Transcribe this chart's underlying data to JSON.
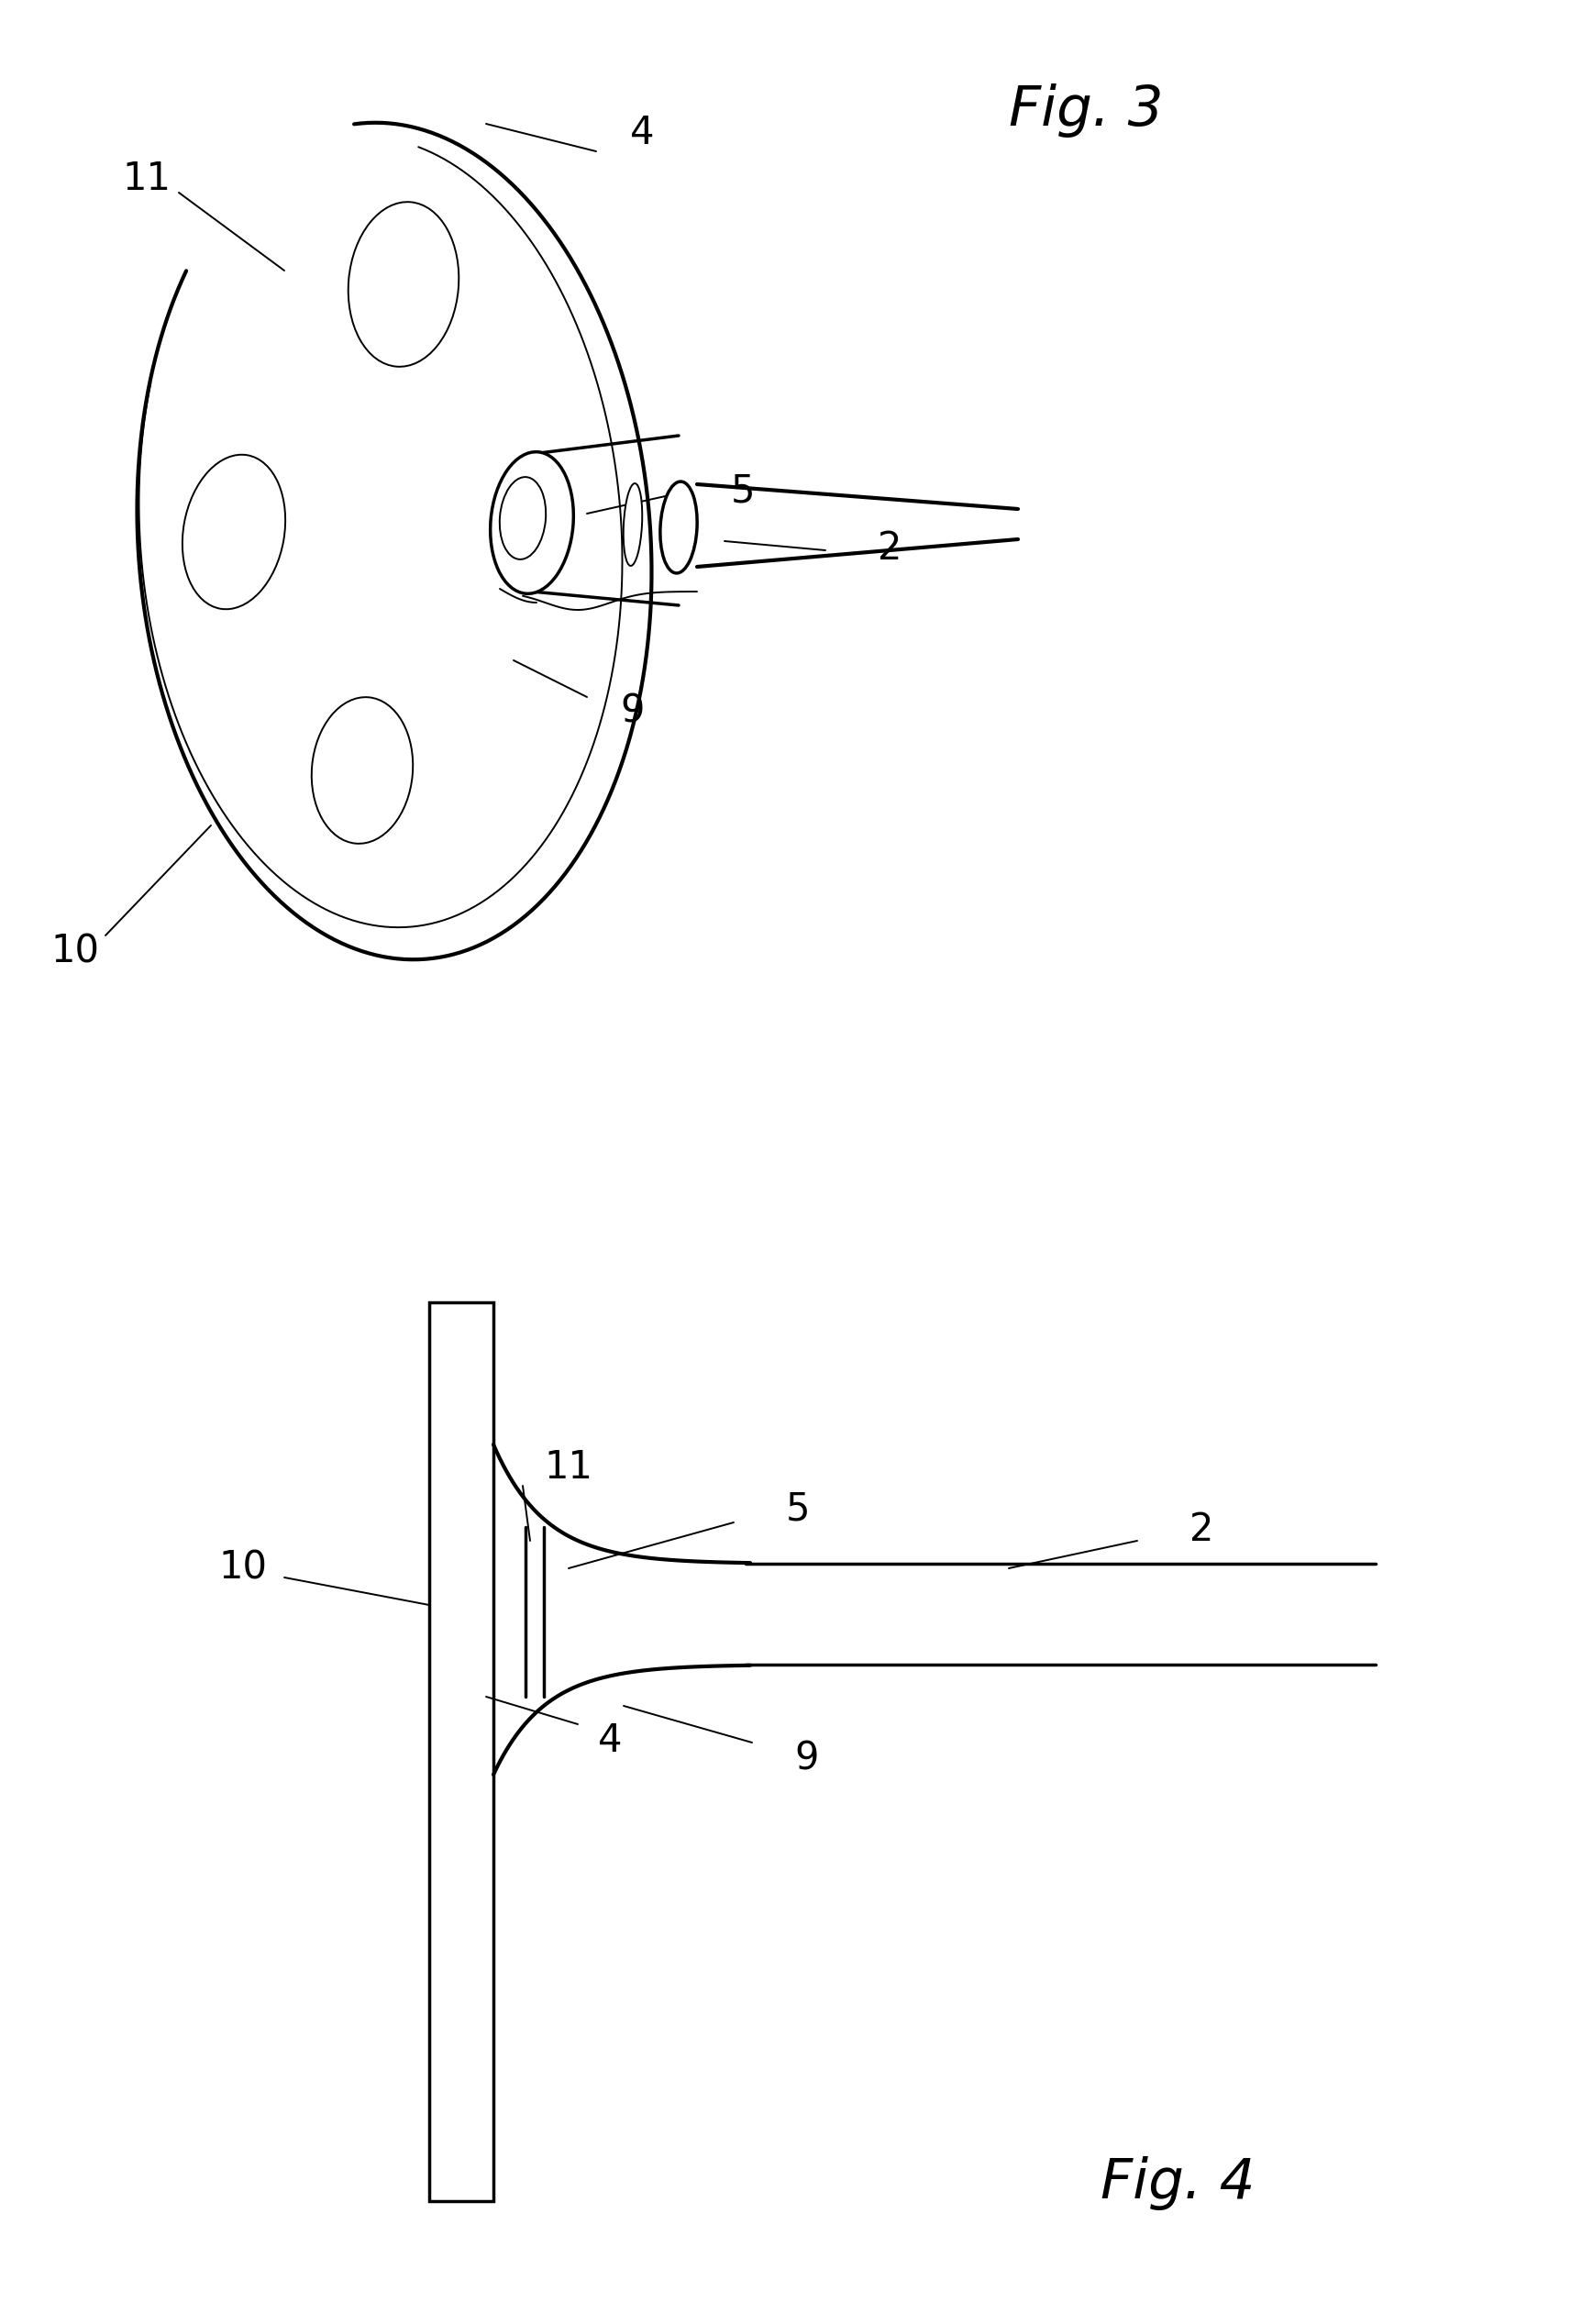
{
  "fig3_label": "Fig. 3",
  "fig4_label": "Fig. 4",
  "bg": "#ffffff",
  "lc": "#000000",
  "lw": 2.5,
  "tlw": 1.4,
  "fs_label": 30,
  "fs_fig": 44
}
